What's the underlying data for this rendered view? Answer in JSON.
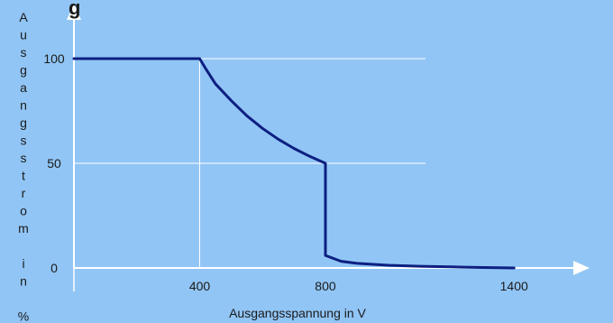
{
  "chart_data": {
    "type": "line",
    "title_fragment": "g",
    "xlabel": "Ausgangsspannung in V",
    "ylabel": "Ausgangsstrom in %",
    "xlim": [
      0,
      1580
    ],
    "ylim": [
      0,
      100
    ],
    "x_ticks": [
      400,
      800,
      1400
    ],
    "x_tick_labels": [
      "400",
      "800",
      "1400"
    ],
    "y_ticks": [
      0,
      50,
      100
    ],
    "y_tick_labels": [
      "0",
      "50",
      "100"
    ],
    "grid": "horizontal at 50 and 100, vertical at 400",
    "series": [
      {
        "color": "#0d1f80",
        "x": [
          0,
          400,
          420,
          450,
          500,
          550,
          600,
          650,
          700,
          750,
          800,
          800,
          800,
          850,
          900,
          1000,
          1100,
          1200,
          1300,
          1400
        ],
        "y": [
          100,
          100,
          95,
          88,
          80,
          72.7,
          66.7,
          61.5,
          57.1,
          53.3,
          50,
          50,
          6,
          3.2,
          2.2,
          1.3,
          0.8,
          0.5,
          0.2,
          0
        ]
      }
    ],
    "colors": {
      "background": "#91c5f5",
      "axis": "#ffffff",
      "grid": "#ffffff",
      "line": "#0d1f80"
    }
  }
}
